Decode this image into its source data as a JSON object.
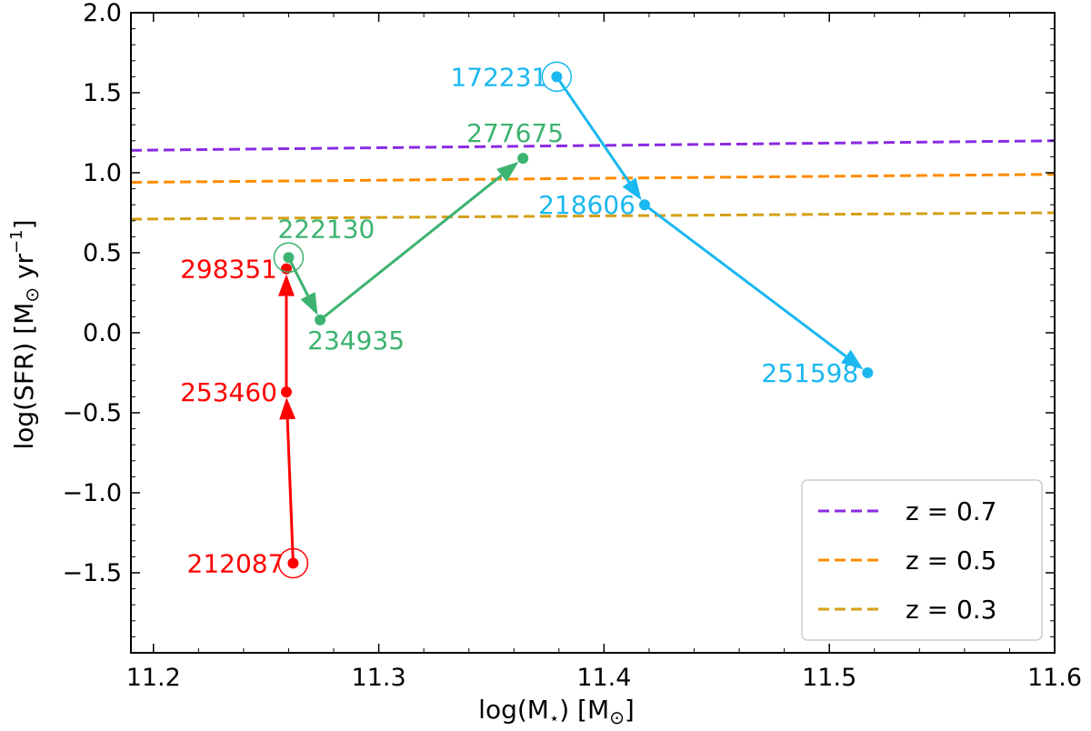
{
  "chart_data": {
    "type": "scatter",
    "xlabel_main": "log(M",
    "xlabel_sub": "⋆",
    "xlabel_rest": ") [M",
    "xlabel_sun": "⊙",
    "xlabel_end": "]",
    "ylabel_main": "log(SFR)  [M",
    "ylabel_sun": "⊙",
    "ylabel_rest": " yr",
    "ylabel_sup": "−1",
    "ylabel_end": "]",
    "xlim": [
      11.19,
      11.6
    ],
    "ylim": [
      -2.0,
      2.0
    ],
    "xticks": [
      11.2,
      11.3,
      11.4,
      11.5,
      11.6
    ],
    "xtick_labels": [
      "11.2",
      "11.3",
      "11.4",
      "11.5",
      "11.6"
    ],
    "yticks": [
      -1.5,
      -1.0,
      -0.5,
      0.0,
      0.5,
      1.0,
      1.5,
      2.0
    ],
    "ytick_labels": [
      "−1.5",
      "−1.0",
      "−0.5",
      "0.0",
      "0.5",
      "1.0",
      "1.5",
      "2.0"
    ],
    "grid": false,
    "legend_position": "bottom-right",
    "lines": [
      {
        "name": "z = 0.7",
        "color": "#8a2be2",
        "style": "dashed",
        "x": [
          11.19,
          11.6
        ],
        "y": [
          1.14,
          1.2
        ]
      },
      {
        "name": "z = 0.5",
        "color": "#ff8c00",
        "style": "dashed",
        "x": [
          11.19,
          11.6
        ],
        "y": [
          0.94,
          0.99
        ]
      },
      {
        "name": "z = 0.3",
        "color": "#d4a017",
        "style": "dashed",
        "x": [
          11.19,
          11.6
        ],
        "y": [
          0.71,
          0.75
        ]
      }
    ],
    "tracks": [
      {
        "color": "#ff0000",
        "points": [
          {
            "id": "212087",
            "x": 11.262,
            "y": -1.44,
            "start": true,
            "label_side": "left"
          },
          {
            "id": "253460",
            "x": 11.259,
            "y": -0.37,
            "label_side": "left"
          },
          {
            "id": "298351",
            "x": 11.259,
            "y": 0.4,
            "label_side": "left"
          }
        ]
      },
      {
        "color": "#3cb371",
        "points": [
          {
            "id": "222130",
            "x": 11.26,
            "y": 0.47,
            "start": true,
            "label_side": "above"
          },
          {
            "id": "234935",
            "x": 11.274,
            "y": 0.08,
            "label_side": "below"
          },
          {
            "id": "277675",
            "x": 11.364,
            "y": 1.09,
            "label_side": "above"
          }
        ]
      },
      {
        "color": "#1ab8f0",
        "points": [
          {
            "id": "172231",
            "x": 11.379,
            "y": 1.6,
            "start": true,
            "label_side": "left"
          },
          {
            "id": "218606",
            "x": 11.418,
            "y": 0.8,
            "label_side": "left"
          },
          {
            "id": "251598",
            "x": 11.517,
            "y": -0.25,
            "label_side": "left"
          }
        ]
      }
    ]
  }
}
